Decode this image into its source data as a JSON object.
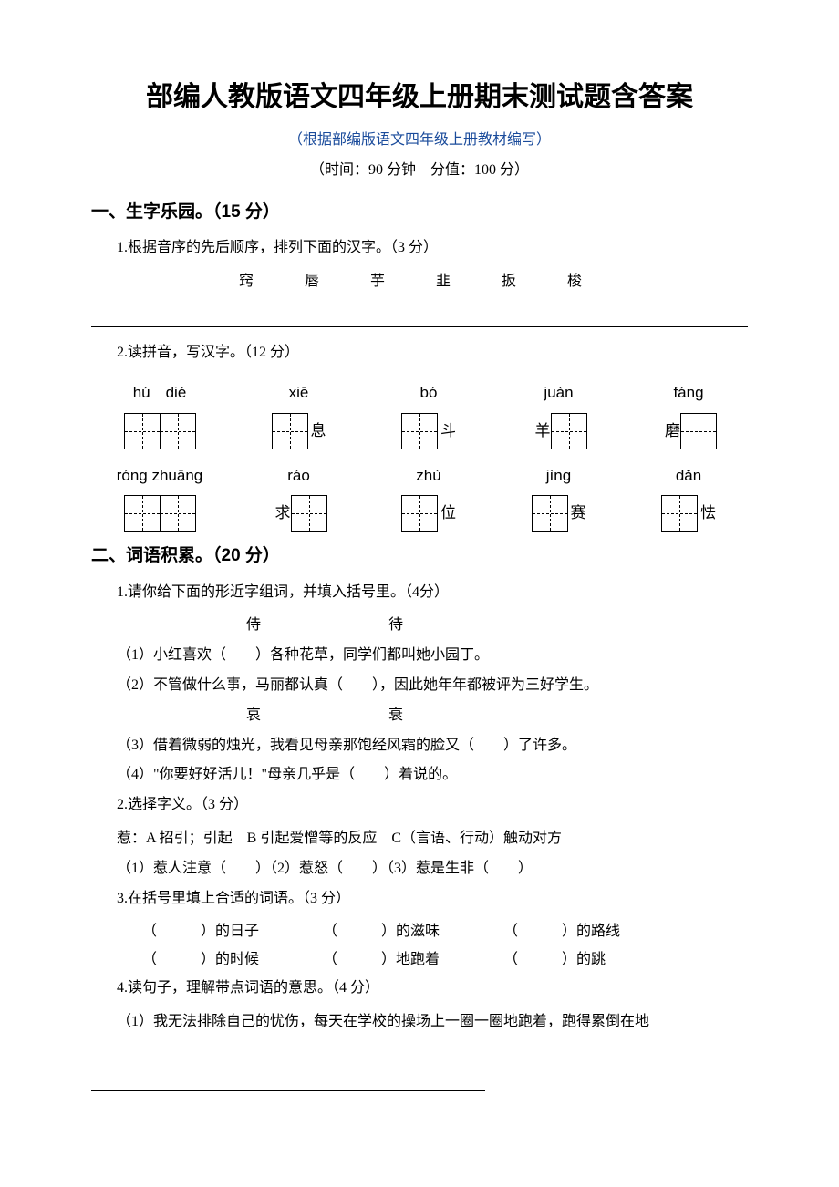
{
  "doc": {
    "title": "部编人教版语文四年级上册期末测试题含答案",
    "subtitle": "（根据部编版语文四年级上册教材编写）",
    "subtitle_color": "#1a4b9b",
    "timing": "（时间：90 分钟　分值：100 分）",
    "colors": {
      "text": "#000000",
      "bg": "#ffffff"
    }
  },
  "section1": {
    "header": "一、生字乐园。（15 分）",
    "q1": {
      "prompt": "1.根据音序的先后顺序，排列下面的汉字。（3 分）",
      "chars": "窍　唇　芋　韭　扳　梭"
    },
    "q2": {
      "prompt": "2.读拼音，写汉字。（12 分）",
      "row1_pinyin": [
        "hú　dié",
        "xiē",
        "bó",
        "juàn",
        "fánɡ"
      ],
      "row1_boxes": [
        {
          "boxes": 2,
          "tail": ""
        },
        {
          "boxes": 1,
          "tail": "息"
        },
        {
          "boxes": 1,
          "tail": "斗"
        },
        {
          "boxes": 1,
          "tail": "",
          "pre": "羊"
        },
        {
          "boxes": 1,
          "tail": "",
          "pre": "磨"
        }
      ],
      "row2_pinyin": [
        "rónɡ zhuānɡ",
        "ráo",
        "zhù",
        "jìnɡ",
        "dǎn"
      ],
      "row2_boxes": [
        {
          "boxes": 2,
          "tail": ""
        },
        {
          "boxes": 1,
          "tail": "",
          "pre": "求"
        },
        {
          "boxes": 1,
          "tail": "位"
        },
        {
          "boxes": 1,
          "tail": "赛"
        },
        {
          "boxes": 1,
          "tail": "怯"
        }
      ]
    }
  },
  "section2": {
    "header": "二、词语积累。（20 分）",
    "q1": {
      "prompt": "1.请你给下面的形近字组词，并填入括号里。（4分）",
      "pair1": "侍　　待",
      "s1": "（1）小红喜欢（　　）各种花草，同学们都叫她小园丁。",
      "s2": "（2）不管做什么事，马丽都认真（　　），因此她年年都被评为三好学生。",
      "pair2": "哀　　衰",
      "s3": "（3）借着微弱的烛光，我看见母亲那饱经风霜的脸又（　　）了许多。",
      "s4": "（4）\"你要好好活儿！\"母亲几乎是（　　）着说的。"
    },
    "q2": {
      "prompt": "2.选择字义。（3 分）",
      "defs": "惹：A 招引；引起　B 引起爱憎等的反应　C（言语、行动）触动对方",
      "items": "（1）惹人注意（　　）（2）惹怒（　　）（3）惹是生非（　　）"
    },
    "q3": {
      "prompt": "3.在括号里填上合适的词语。（3 分）",
      "line1_a": "（　　　）的日子",
      "line1_b": "（　　　）的滋味",
      "line1_c": "（　　　）的路线",
      "line2_a": "（　　　）的时候",
      "line2_b": "（　　　）地跑着",
      "line2_c": "（　　　）的跳"
    },
    "q4": {
      "prompt": "4.读句子，理解带点词语的意思。（4 分）",
      "s1": "（1）我无法排除自己的忧伤，每天在学校的操场上一圈一圈地跑着，跑得累倒在地"
    }
  }
}
